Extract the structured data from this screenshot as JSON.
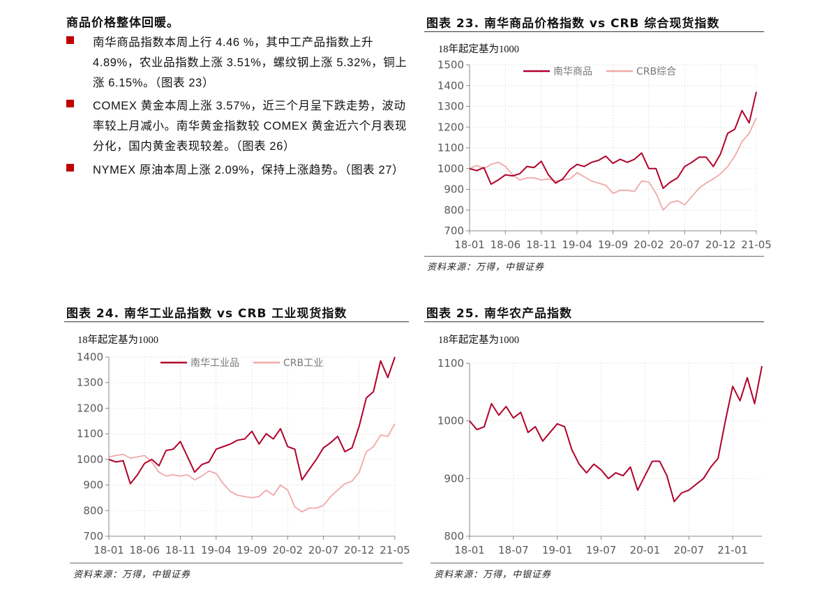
{
  "text_block": {
    "heading": "商品价格整体回暖。",
    "bullets": [
      "南华商品指数本周上行 4.46 %，其中工产品指数上升 4.89%，农业品指数上涨 3.51%，螺纹钢上涨 5.32%，铜上涨 6.15%。（图表 23）",
      "COMEX 黄金本周上涨 3.57%，近三个月呈下跌走势，波动率较上月减小。南华黄金指数较 COMEX 黄金近六个月表现分化，国内黄金表现较差。（图表 26）",
      "NYMEX 原油本周上涨 2.09%，保持上涨趋势。（图表 27）"
    ],
    "bullet_color": "#c00000"
  },
  "charts": {
    "c23": {
      "title": "图表 23. 南华商品价格指数 vs CRB 综合现货指数",
      "subtitle": "18年起定基为1000",
      "source": "资料来源：万得，中银证券"
    },
    "c24": {
      "title": "图表 24. 南华工业品指数 vs CRB 工业现货指数",
      "subtitle": "18年起定基为1000",
      "source": "资料来源：万得，中银证券"
    },
    "c25": {
      "title": "图表 25. 南华农产品指数",
      "subtitle": "18年起定基为1000",
      "source": "资料来源：万得，中银证券"
    }
  },
  "chart_data": [
    {
      "id": "c23",
      "type": "line",
      "title": "南华商品价格指数 vs CRB 综合现货指数",
      "ylabel": "18年起定基为1000",
      "x_unit": "months since 2018-01",
      "xlim": [
        0,
        40
      ],
      "ylim": [
        700,
        1500
      ],
      "yticks": [
        700,
        800,
        900,
        1000,
        1100,
        1200,
        1300,
        1400,
        1500
      ],
      "xticks": [
        0,
        5,
        10,
        15,
        20,
        25,
        30,
        35,
        40
      ],
      "xtick_labels": [
        "18-01",
        "18-06",
        "18-11",
        "19-04",
        "19-09",
        "20-02",
        "20-07",
        "20-12",
        "21-05"
      ],
      "grid": true,
      "legend": "top-center",
      "series": [
        {
          "name": "南华商品",
          "color": "#b0002a",
          "values": [
            1000,
            990,
            1005,
            925,
            945,
            970,
            965,
            975,
            1010,
            1005,
            1035,
            970,
            930,
            950,
            995,
            1020,
            1010,
            1030,
            1040,
            1060,
            1025,
            1045,
            1030,
            1045,
            1075,
            1000,
            1000,
            905,
            935,
            955,
            1010,
            1030,
            1055,
            1055,
            1010,
            1070,
            1170,
            1190,
            1280,
            1220,
            1370
          ]
        },
        {
          "name": "CRB综合",
          "color": "#f0a8a8",
          "values": [
            1000,
            1015,
            1000,
            1020,
            1030,
            1010,
            970,
            945,
            955,
            955,
            945,
            950,
            940,
            945,
            950,
            980,
            960,
            940,
            930,
            920,
            880,
            895,
            895,
            890,
            940,
            935,
            880,
            800,
            835,
            845,
            825,
            865,
            905,
            930,
            950,
            975,
            1010,
            1060,
            1130,
            1170,
            1245
          ]
        }
      ]
    },
    {
      "id": "c24",
      "type": "line",
      "title": "南华工业品指数 vs CRB 工业现货指数",
      "ylabel": "18年起定基为1000",
      "x_unit": "months since 2018-01",
      "xlim": [
        0,
        40
      ],
      "ylim": [
        700,
        1400
      ],
      "yticks": [
        700,
        800,
        900,
        1000,
        1100,
        1200,
        1300,
        1400
      ],
      "xticks": [
        0,
        5,
        10,
        15,
        20,
        25,
        30,
        35,
        40
      ],
      "xtick_labels": [
        "18-01",
        "18-06",
        "18-11",
        "19-04",
        "19-09",
        "20-02",
        "20-07",
        "20-12",
        "21-05"
      ],
      "grid": true,
      "legend": "top-center",
      "series": [
        {
          "name": "南华工业品",
          "color": "#b0002a",
          "values": [
            1000,
            990,
            995,
            905,
            940,
            985,
            1000,
            975,
            1035,
            1040,
            1070,
            1010,
            950,
            980,
            990,
            1040,
            1050,
            1060,
            1075,
            1080,
            1110,
            1060,
            1100,
            1080,
            1120,
            1050,
            1040,
            920,
            960,
            1000,
            1045,
            1065,
            1090,
            1030,
            1045,
            1130,
            1240,
            1265,
            1385,
            1320,
            1400
          ]
        },
        {
          "name": "CRB工业",
          "color": "#f0a8a8",
          "values": [
            1010,
            1015,
            1020,
            1005,
            1010,
            1015,
            990,
            950,
            935,
            940,
            935,
            940,
            920,
            935,
            955,
            945,
            905,
            875,
            860,
            855,
            850,
            855,
            880,
            860,
            900,
            880,
            815,
            795,
            810,
            810,
            820,
            855,
            880,
            905,
            915,
            950,
            1030,
            1050,
            1095,
            1090,
            1140
          ]
        }
      ]
    },
    {
      "id": "c25",
      "type": "line",
      "title": "南华农产品指数",
      "ylabel": "18年起定基为1000",
      "x_unit": "months since 2018-01",
      "xlim": [
        0,
        40
      ],
      "ylim": [
        800,
        1100
      ],
      "yticks": [
        800,
        900,
        1000,
        1100
      ],
      "xticks": [
        0,
        6,
        12,
        18,
        24,
        30,
        36
      ],
      "xtick_labels": [
        "18-01",
        "18-07",
        "19-01",
        "19-07",
        "20-01",
        "20-07",
        "21-01"
      ],
      "grid": true,
      "legend": "none",
      "series": [
        {
          "name": "南华农产品",
          "color": "#b0002a",
          "values": [
            1000,
            985,
            990,
            1030,
            1010,
            1025,
            1005,
            1015,
            980,
            990,
            965,
            980,
            995,
            990,
            950,
            925,
            910,
            925,
            915,
            900,
            910,
            905,
            920,
            880,
            905,
            930,
            930,
            905,
            860,
            875,
            880,
            890,
            900,
            920,
            935,
            1000,
            1060,
            1035,
            1075,
            1030,
            1095
          ]
        }
      ]
    }
  ]
}
